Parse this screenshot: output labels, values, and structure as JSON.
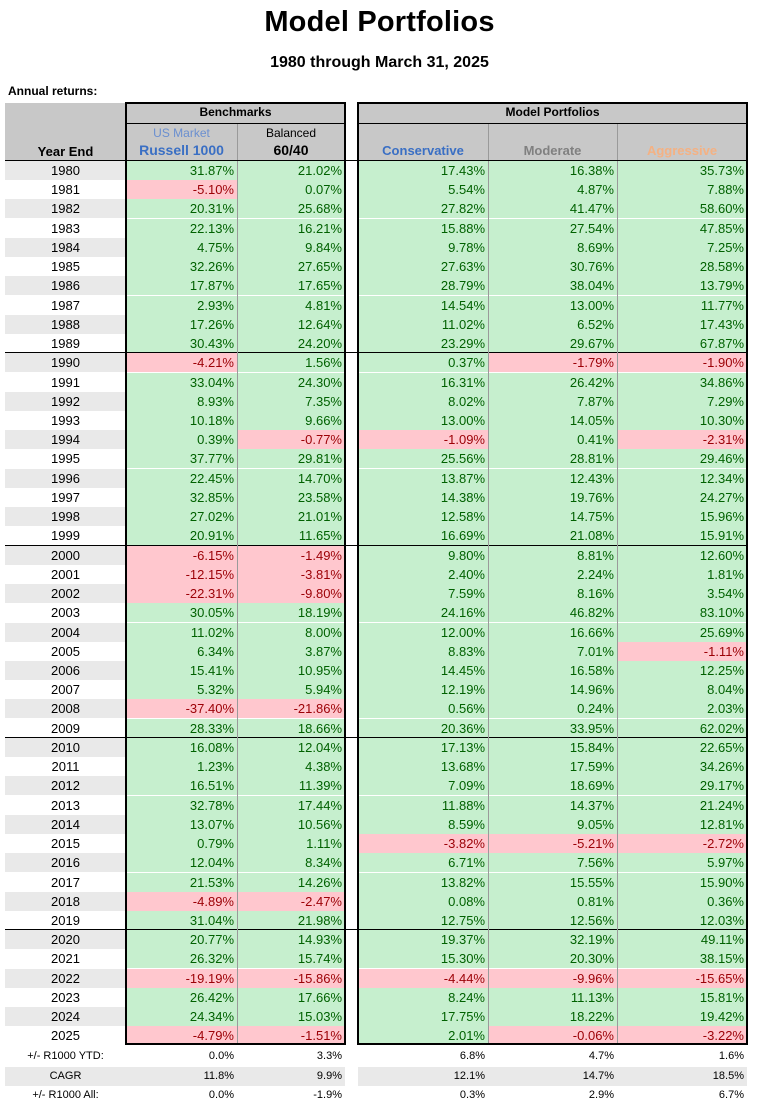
{
  "title": "Model Portfolios",
  "subtitle": "1980 through March 31, 2025",
  "section_label": "Annual returns:",
  "headers": {
    "year_end": "Year End",
    "benchmarks": "Benchmarks",
    "model_portfolios": "Model Portfolios",
    "us_market": "US Market",
    "russell": "Russell 1000",
    "balanced": "Balanced",
    "sixty_forty": "60/40",
    "conservative": "Conservative",
    "moderate": "Moderate",
    "aggressive": "Aggressive"
  },
  "colors": {
    "positive_bg": "#c6efce",
    "positive_text": "#006100",
    "negative_bg": "#ffc7ce",
    "negative_text": "#9c0006",
    "conservative": "#3a6fc4",
    "moderate": "#808080",
    "aggressive": "#f4b183",
    "us_market": "#6a8fd0"
  },
  "rows": [
    [
      "1980",
      "31.87%",
      "21.02%",
      "17.43%",
      "16.38%",
      "35.73%"
    ],
    [
      "1981",
      "-5.10%",
      "0.07%",
      "5.54%",
      "4.87%",
      "7.88%"
    ],
    [
      "1982",
      "20.31%",
      "25.68%",
      "27.82%",
      "41.47%",
      "58.60%"
    ],
    [
      "1983",
      "22.13%",
      "16.21%",
      "15.88%",
      "27.54%",
      "47.85%"
    ],
    [
      "1984",
      "4.75%",
      "9.84%",
      "9.78%",
      "8.69%",
      "7.25%"
    ],
    [
      "1985",
      "32.26%",
      "27.65%",
      "27.63%",
      "30.76%",
      "28.58%"
    ],
    [
      "1986",
      "17.87%",
      "17.65%",
      "28.79%",
      "38.04%",
      "13.79%"
    ],
    [
      "1987",
      "2.93%",
      "4.81%",
      "14.54%",
      "13.00%",
      "11.77%"
    ],
    [
      "1988",
      "17.26%",
      "12.64%",
      "11.02%",
      "6.52%",
      "17.43%"
    ],
    [
      "1989",
      "30.43%",
      "24.20%",
      "23.29%",
      "29.67%",
      "67.87%"
    ],
    [
      "1990",
      "-4.21%",
      "1.56%",
      "0.37%",
      "-1.79%",
      "-1.90%"
    ],
    [
      "1991",
      "33.04%",
      "24.30%",
      "16.31%",
      "26.42%",
      "34.86%"
    ],
    [
      "1992",
      "8.93%",
      "7.35%",
      "8.02%",
      "7.87%",
      "7.29%"
    ],
    [
      "1993",
      "10.18%",
      "9.66%",
      "13.00%",
      "14.05%",
      "10.30%"
    ],
    [
      "1994",
      "0.39%",
      "-0.77%",
      "-1.09%",
      "0.41%",
      "-2.31%"
    ],
    [
      "1995",
      "37.77%",
      "29.81%",
      "25.56%",
      "28.81%",
      "29.46%"
    ],
    [
      "1996",
      "22.45%",
      "14.70%",
      "13.87%",
      "12.43%",
      "12.34%"
    ],
    [
      "1997",
      "32.85%",
      "23.58%",
      "14.38%",
      "19.76%",
      "24.27%"
    ],
    [
      "1998",
      "27.02%",
      "21.01%",
      "12.58%",
      "14.75%",
      "15.96%"
    ],
    [
      "1999",
      "20.91%",
      "11.65%",
      "16.69%",
      "21.08%",
      "15.91%"
    ],
    [
      "2000",
      "-6.15%",
      "-1.49%",
      "9.80%",
      "8.81%",
      "12.60%"
    ],
    [
      "2001",
      "-12.15%",
      "-3.81%",
      "2.40%",
      "2.24%",
      "1.81%"
    ],
    [
      "2002",
      "-22.31%",
      "-9.80%",
      "7.59%",
      "8.16%",
      "3.54%"
    ],
    [
      "2003",
      "30.05%",
      "18.19%",
      "24.16%",
      "46.82%",
      "83.10%"
    ],
    [
      "2004",
      "11.02%",
      "8.00%",
      "12.00%",
      "16.66%",
      "25.69%"
    ],
    [
      "2005",
      "6.34%",
      "3.87%",
      "8.83%",
      "7.01%",
      "-1.11%"
    ],
    [
      "2006",
      "15.41%",
      "10.95%",
      "14.45%",
      "16.58%",
      "12.25%"
    ],
    [
      "2007",
      "5.32%",
      "5.94%",
      "12.19%",
      "14.96%",
      "8.04%"
    ],
    [
      "2008",
      "-37.40%",
      "-21.86%",
      "0.56%",
      "0.24%",
      "2.03%"
    ],
    [
      "2009",
      "28.33%",
      "18.66%",
      "20.36%",
      "33.95%",
      "62.02%"
    ],
    [
      "2010",
      "16.08%",
      "12.04%",
      "17.13%",
      "15.84%",
      "22.65%"
    ],
    [
      "2011",
      "1.23%",
      "4.38%",
      "13.68%",
      "17.59%",
      "34.26%"
    ],
    [
      "2012",
      "16.51%",
      "11.39%",
      "7.09%",
      "18.69%",
      "29.17%"
    ],
    [
      "2013",
      "32.78%",
      "17.44%",
      "11.88%",
      "14.37%",
      "21.24%"
    ],
    [
      "2014",
      "13.07%",
      "10.56%",
      "8.59%",
      "9.05%",
      "12.81%"
    ],
    [
      "2015",
      "0.79%",
      "1.11%",
      "-3.82%",
      "-5.21%",
      "-2.72%"
    ],
    [
      "2016",
      "12.04%",
      "8.34%",
      "6.71%",
      "7.56%",
      "5.97%"
    ],
    [
      "2017",
      "21.53%",
      "14.26%",
      "13.82%",
      "15.55%",
      "15.90%"
    ],
    [
      "2018",
      "-4.89%",
      "-2.47%",
      "0.08%",
      "0.81%",
      "0.36%"
    ],
    [
      "2019",
      "31.04%",
      "21.98%",
      "12.75%",
      "12.56%",
      "12.03%"
    ],
    [
      "2020",
      "20.77%",
      "14.93%",
      "19.37%",
      "32.19%",
      "49.11%"
    ],
    [
      "2021",
      "26.32%",
      "15.74%",
      "15.30%",
      "20.30%",
      "38.15%"
    ],
    [
      "2022",
      "-19.19%",
      "-15.86%",
      "-4.44%",
      "-9.96%",
      "-15.65%"
    ],
    [
      "2023",
      "26.42%",
      "17.66%",
      "8.24%",
      "11.13%",
      "15.81%"
    ],
    [
      "2024",
      "24.34%",
      "15.03%",
      "17.75%",
      "18.22%",
      "19.42%"
    ],
    [
      "2025",
      "-4.79%",
      "-1.51%",
      "2.01%",
      "-0.06%",
      "-3.22%"
    ]
  ],
  "footer": [
    [
      "+/- R1000 YTD:",
      "0.0%",
      "3.3%",
      "6.8%",
      "4.7%",
      "1.6%"
    ],
    [
      "CAGR",
      "11.8%",
      "9.9%",
      "12.1%",
      "14.7%",
      "18.5%"
    ],
    [
      "+/- R1000 All:",
      "0.0%",
      "-1.9%",
      "0.3%",
      "2.9%",
      "6.7%"
    ]
  ]
}
